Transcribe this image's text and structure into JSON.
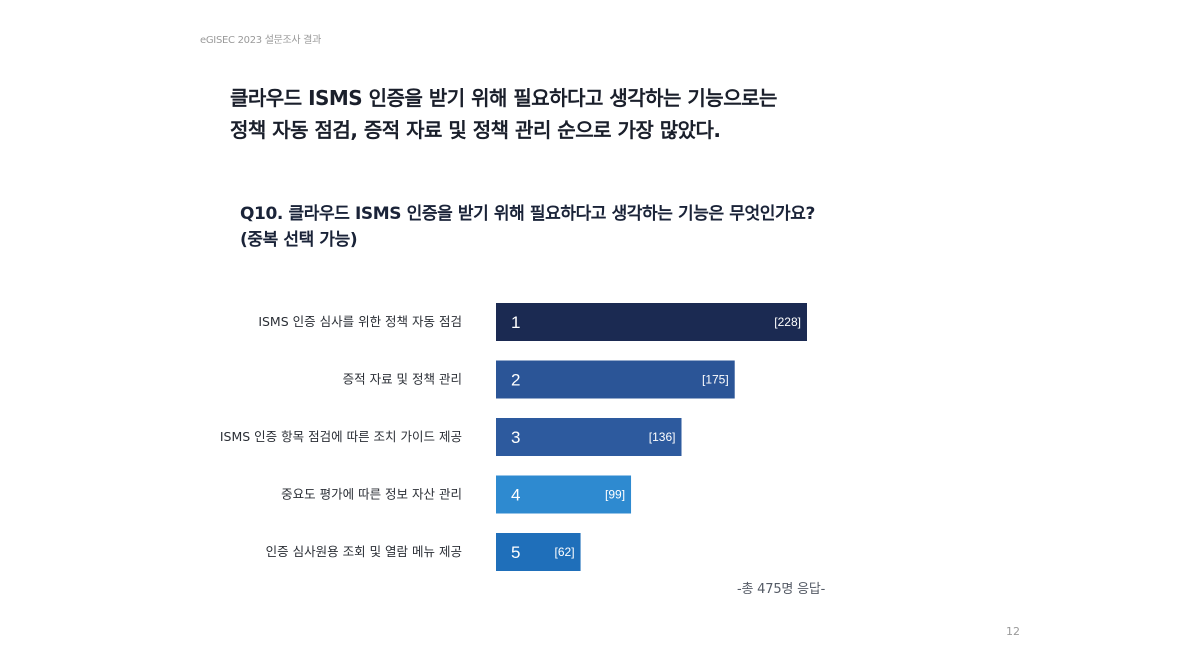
{
  "header": {
    "label": "eGISEC 2023 설문조사 결과"
  },
  "headline": {
    "line1": "클라우드 ISMS 인증을 받기 위해 필요하다고 생각하는 기능으로는",
    "line2": "정책 자동 점검, 증적 자료 및 정책 관리 순으로 가장 많았다."
  },
  "question": {
    "line1": "Q10. 클라우드 ISMS 인증을 받기 위해 필요하다고 생각하는 기능은 무엇인가요?",
    "line2": "(중복 선택 가능)"
  },
  "chart_data": {
    "type": "bar",
    "orientation": "horizontal",
    "categories": [
      "ISMS 인증 심사를 위한 정책 자동 점검",
      "증적 자료 및 정책 관리",
      "ISMS 인증 항목 점검에 따른 조치 가이드 제공",
      "중요도 평가에 따른 정보 자산 관리",
      "인증 심사원용 조회 및 열람 메뉴 제공"
    ],
    "ranks": [
      "1",
      "2",
      "3",
      "4",
      "5"
    ],
    "values": [
      228,
      175,
      136,
      99,
      62
    ],
    "value_labels": [
      "[228]",
      "[175]",
      "[136]",
      "[99]",
      "[62]"
    ],
    "colors": [
      "#1b2a52",
      "#2b5597",
      "#2d5a9e",
      "#2e8ad0",
      "#1f6fba"
    ],
    "xlim": [
      0,
      228
    ]
  },
  "footer": {
    "total_note": "-총 475명 응답-",
    "page_number": "12"
  }
}
